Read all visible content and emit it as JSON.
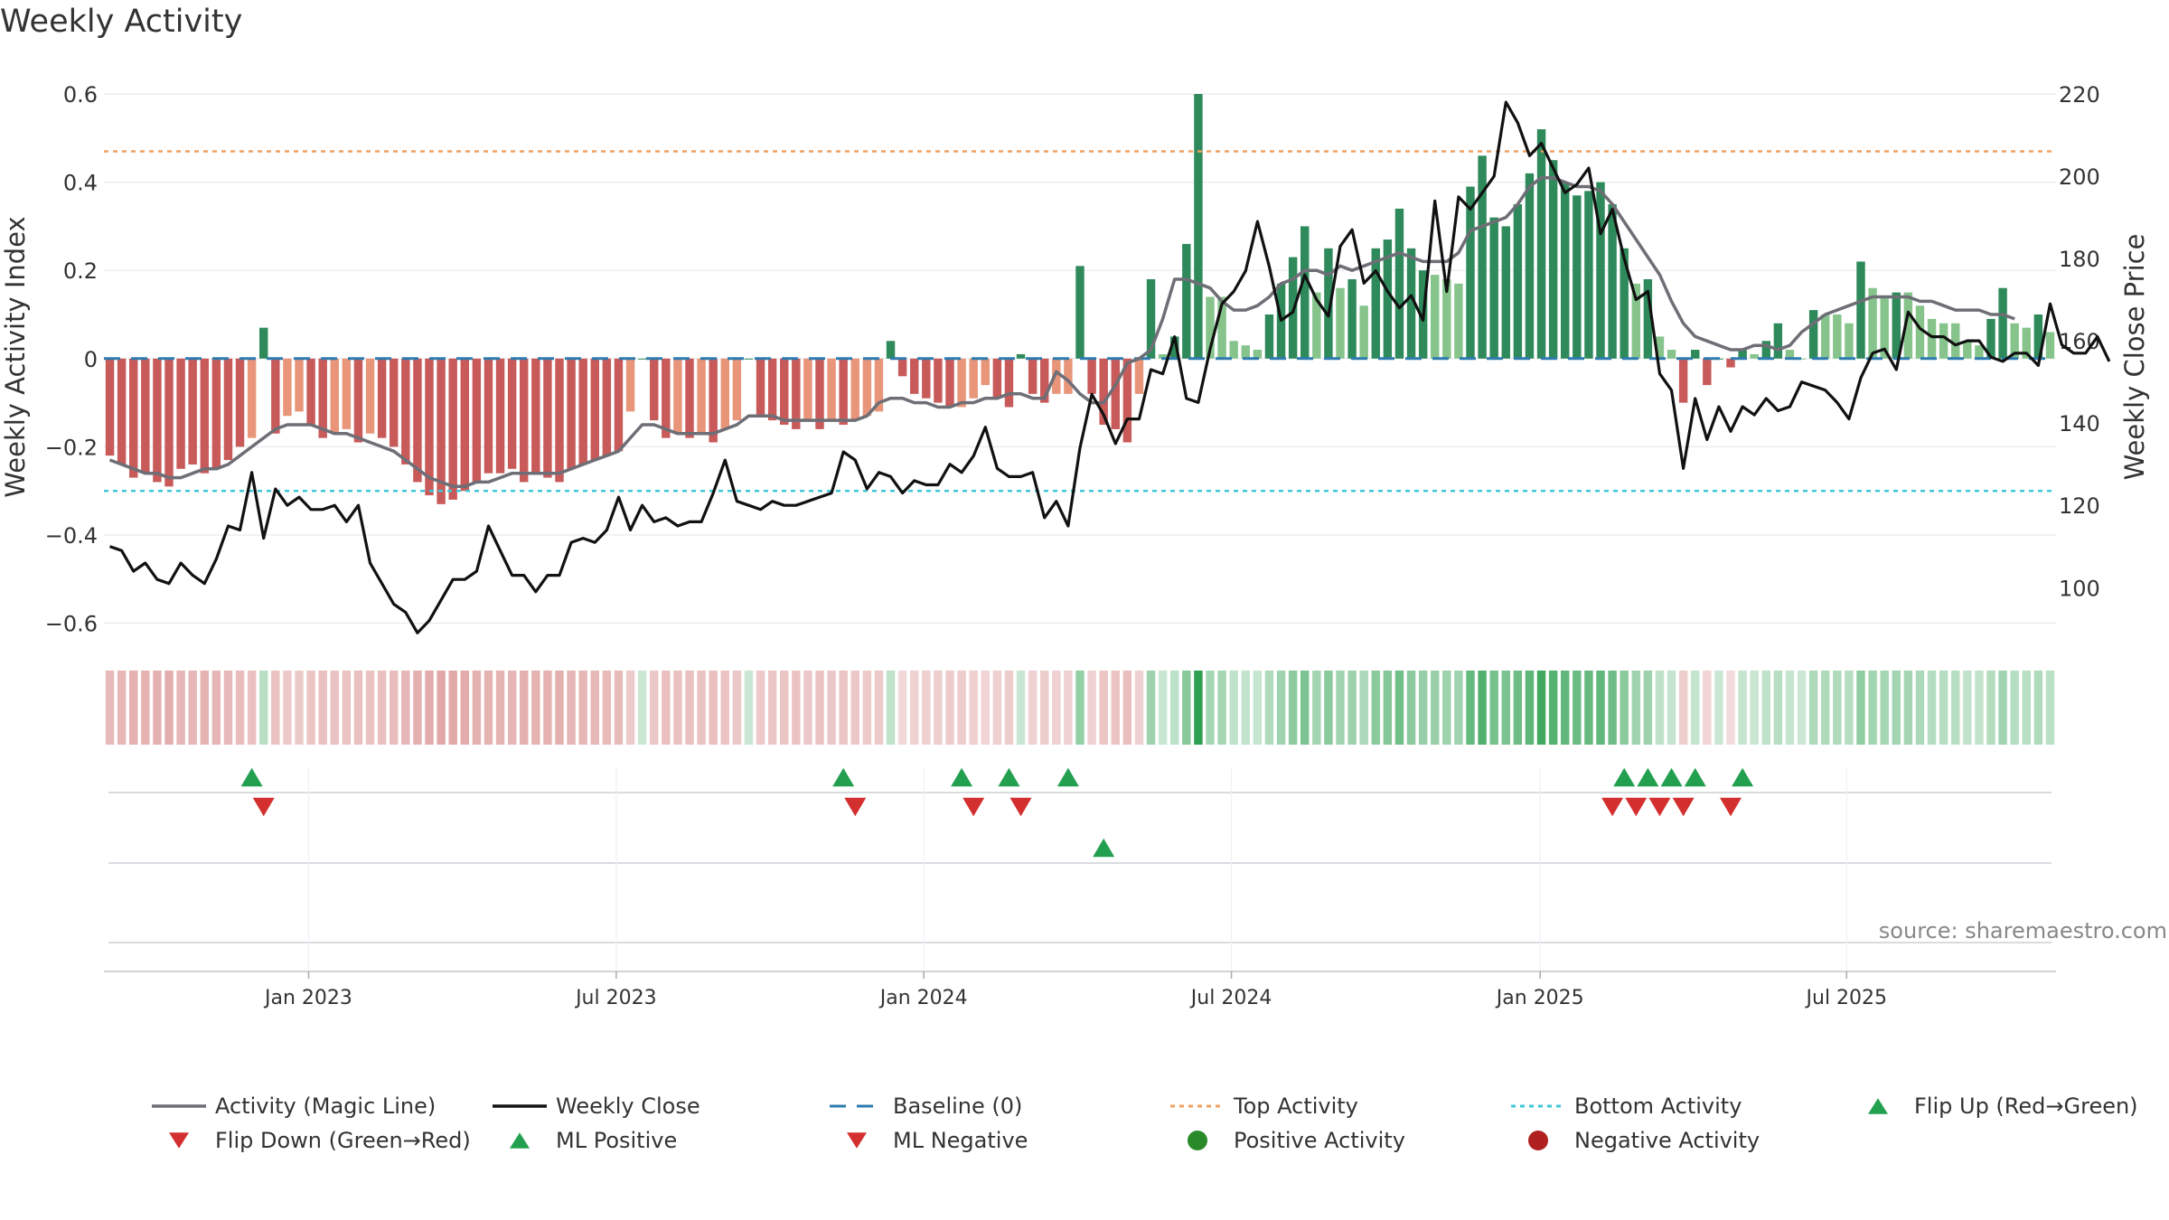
{
  "title": "Weekly Activity",
  "source": "source: sharemaestro.com",
  "colors": {
    "pos_dark": "#2e8a5b",
    "pos_light": "#86c48c",
    "neg_dark": "#c85a5a",
    "neg_light": "#e8957a",
    "magic": "#6e6e76",
    "close": "#111111",
    "baseline": "#2e7bb0",
    "top": "#f0a060",
    "bottom": "#40c8d8",
    "up": "#22a050",
    "down": "#d32f2f",
    "pos_dot": "#2a8a2a",
    "neg_dot": "#b02020"
  },
  "chart_data": {
    "type": "bar",
    "title": "Weekly Activity",
    "ylabel": "Weekly Activity Index",
    "y2label": "Weekly Close Price",
    "ylim": [
      -0.65,
      0.6
    ],
    "y2lim": [
      86,
      220
    ],
    "yticks": [
      "0.6",
      "0.4",
      "0.2",
      "0",
      "−0.2",
      "−0.4",
      "−0.6"
    ],
    "yticks_values": [
      0.6,
      0.4,
      0.2,
      0,
      -0.2,
      -0.4,
      -0.6
    ],
    "y2ticks": [
      "220",
      "200",
      "180",
      "160",
      "140",
      "120",
      "100"
    ],
    "y2ticks_values": [
      220,
      200,
      180,
      160,
      140,
      120,
      100
    ],
    "top_activity": 0.47,
    "bottom_activity": -0.3,
    "start_week_offset": 0,
    "weeks_per_year_label_anchor": "2022-10-10",
    "xtick_labels": [
      "Jan 2023",
      "Jul 2023",
      "Jan 2024",
      "Jul 2024",
      "Jan 2025",
      "Jul 2025"
    ],
    "xtick_weeks": [
      17.3,
      43.3,
      69.3,
      95.3,
      121.4,
      147.3
    ],
    "activity": [
      -0.22,
      -0.24,
      -0.27,
      -0.26,
      -0.28,
      -0.29,
      -0.25,
      -0.24,
      -0.26,
      -0.25,
      -0.23,
      -0.2,
      -0.18,
      0.07,
      -0.17,
      -0.13,
      -0.12,
      -0.15,
      -0.18,
      -0.17,
      -0.16,
      -0.19,
      -0.17,
      -0.18,
      -0.2,
      -0.24,
      -0.28,
      -0.31,
      -0.33,
      -0.32,
      -0.3,
      -0.28,
      -0.26,
      -0.26,
      -0.25,
      -0.28,
      -0.26,
      -0.27,
      -0.28,
      -0.25,
      -0.24,
      -0.23,
      -0.22,
      -0.21,
      -0.12,
      0.0,
      -0.14,
      -0.18,
      -0.17,
      -0.18,
      -0.17,
      -0.19,
      -0.16,
      -0.14,
      0.0,
      -0.13,
      -0.14,
      -0.15,
      -0.16,
      -0.14,
      -0.16,
      -0.14,
      -0.15,
      -0.14,
      -0.13,
      -0.12,
      0.04,
      -0.04,
      -0.08,
      -0.09,
      -0.1,
      -0.11,
      -0.11,
      -0.09,
      -0.06,
      -0.09,
      -0.11,
      0.01,
      -0.08,
      -0.1,
      -0.08,
      -0.08,
      0.21,
      -0.08,
      -0.15,
      -0.16,
      -0.19,
      -0.08,
      0.18,
      0.01,
      0.05,
      0.26,
      0.6,
      0.14,
      0.14,
      0.04,
      0.03,
      0.02,
      0.1,
      0.17,
      0.23,
      0.3,
      0.15,
      0.25,
      0.16,
      0.18,
      0.12,
      0.25,
      0.27,
      0.34,
      0.25,
      0.2,
      0.19,
      0.18,
      0.17,
      0.39,
      0.46,
      0.32,
      0.3,
      0.35,
      0.42,
      0.52,
      0.45,
      0.4,
      0.37,
      0.38,
      0.4,
      0.35,
      0.25,
      0.17,
      0.18,
      0.05,
      0.02,
      -0.1,
      0.02,
      -0.06,
      0.0,
      -0.02,
      0.02,
      0.01,
      0.04,
      0.08,
      0.02,
      0.0,
      0.11,
      0.1,
      0.1,
      0.08,
      0.22,
      0.16,
      0.14,
      0.15,
      0.15,
      0.12,
      0.09,
      0.08,
      0.08,
      0.04,
      0.03,
      0.09,
      0.16,
      0.08,
      0.07,
      0.1,
      0.06
    ],
    "magic_line": [
      -0.23,
      -0.24,
      -0.25,
      -0.26,
      -0.26,
      -0.27,
      -0.27,
      -0.26,
      -0.25,
      -0.25,
      -0.24,
      -0.22,
      -0.2,
      -0.18,
      -0.16,
      -0.15,
      -0.15,
      -0.15,
      -0.16,
      -0.17,
      -0.17,
      -0.18,
      -0.19,
      -0.2,
      -0.21,
      -0.23,
      -0.25,
      -0.27,
      -0.28,
      -0.29,
      -0.29,
      -0.28,
      -0.28,
      -0.27,
      -0.26,
      -0.26,
      -0.26,
      -0.26,
      -0.26,
      -0.25,
      -0.24,
      -0.23,
      -0.22,
      -0.21,
      -0.18,
      -0.15,
      -0.15,
      -0.16,
      -0.17,
      -0.17,
      -0.17,
      -0.17,
      -0.16,
      -0.15,
      -0.13,
      -0.13,
      -0.13,
      -0.14,
      -0.14,
      -0.14,
      -0.14,
      -0.14,
      -0.14,
      -0.14,
      -0.13,
      -0.1,
      -0.09,
      -0.09,
      -0.1,
      -0.1,
      -0.11,
      -0.11,
      -0.1,
      -0.1,
      -0.09,
      -0.09,
      -0.08,
      -0.08,
      -0.09,
      -0.09,
      -0.03,
      -0.05,
      -0.08,
      -0.1,
      -0.1,
      -0.06,
      -0.01,
      0.0,
      0.02,
      0.09,
      0.18,
      0.18,
      0.17,
      0.16,
      0.13,
      0.11,
      0.11,
      0.12,
      0.14,
      0.17,
      0.18,
      0.2,
      0.2,
      0.19,
      0.21,
      0.2,
      0.21,
      0.22,
      0.23,
      0.24,
      0.23,
      0.22,
      0.22,
      0.22,
      0.24,
      0.29,
      0.3,
      0.31,
      0.32,
      0.35,
      0.39,
      0.41,
      0.41,
      0.4,
      0.39,
      0.39,
      0.38,
      0.35,
      0.31,
      0.27,
      0.23,
      0.19,
      0.13,
      0.08,
      0.05,
      0.04,
      0.03,
      0.02,
      0.02,
      0.03,
      0.03,
      0.02,
      0.03,
      0.06,
      0.08,
      0.1,
      0.11,
      0.12,
      0.13,
      0.14,
      0.14,
      0.14,
      0.14,
      0.13,
      0.13,
      0.12,
      0.11,
      0.11,
      0.11,
      0.1,
      0.1,
      0.09
    ],
    "weekly_close": [
      110,
      109,
      104,
      106,
      102,
      101,
      106,
      103,
      101,
      107,
      115,
      114,
      128,
      112,
      124,
      120,
      122,
      119,
      119,
      120,
      116,
      120,
      106,
      101,
      96,
      94,
      89,
      92,
      97,
      102,
      102,
      104,
      115,
      109,
      103,
      103,
      99,
      103,
      103,
      111,
      112,
      111,
      114,
      122,
      114,
      120,
      116,
      117,
      115,
      116,
      116,
      123,
      131,
      121,
      120,
      119,
      121,
      120,
      120,
      121,
      122,
      123,
      133,
      131,
      124,
      128,
      127,
      123,
      126,
      125,
      125,
      130,
      128,
      132,
      139,
      129,
      127,
      127,
      128,
      117,
      121,
      115,
      134,
      147,
      142,
      135,
      141,
      141,
      153,
      152,
      161,
      146,
      145,
      158,
      169,
      172,
      177,
      189,
      178,
      165,
      167,
      176,
      170,
      166,
      183,
      187,
      174,
      177,
      172,
      168,
      171,
      165,
      194,
      172,
      195,
      192,
      196,
      200,
      218,
      213,
      205,
      208,
      202,
      196,
      198,
      202,
      186,
      192,
      180,
      170,
      172,
      152,
      148,
      129,
      146,
      136,
      144,
      138,
      144,
      142,
      146,
      143,
      144,
      150,
      149,
      148,
      145,
      141,
      151,
      157,
      158,
      153,
      167,
      163,
      161,
      161,
      159,
      160,
      160,
      156,
      155,
      157,
      157,
      154,
      169,
      159,
      157,
      157,
      161,
      155
    ],
    "week_color_intensity_note": "strip colors follow activity sign and magnitude",
    "flip_up_weeks": [
      12,
      62,
      72,
      76,
      81,
      128,
      130,
      132,
      134,
      138
    ],
    "flip_down_weeks": [
      13,
      63,
      73,
      77,
      127,
      129,
      131,
      133,
      137
    ],
    "ml_positive_weeks": [
      84
    ],
    "ml_negative_weeks": [],
    "legend": {
      "magic": "Activity (Magic Line)",
      "close": "Weekly Close",
      "baseline": "Baseline (0)",
      "top": "Top Activity",
      "bottom": "Bottom Activity",
      "flip_up": "Flip Up (Red→Green)",
      "flip_down": "Flip Down (Green→Red)",
      "ml_pos": "ML Positive",
      "ml_neg": "ML Negative",
      "pos_act": "Positive Activity",
      "neg_act": "Negative Activity"
    }
  }
}
